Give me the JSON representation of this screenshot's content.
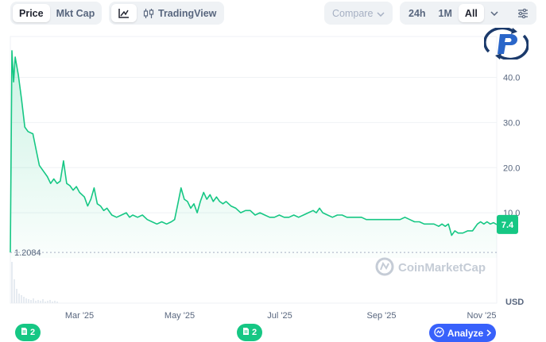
{
  "toolbar": {
    "type_tabs": [
      {
        "label": "Price",
        "active": true
      },
      {
        "label": "Mkt Cap",
        "active": false
      }
    ],
    "line_icon": "line-chart-icon",
    "tradingview_label": "TradingView",
    "compare_label": "Compare",
    "ranges": [
      {
        "label": "24h",
        "active": false
      },
      {
        "label": "1M",
        "active": false
      },
      {
        "label": "All",
        "active": true
      }
    ]
  },
  "watermark": "CoinMarketCap",
  "current_price_tag": "7.4",
  "low_line_label": "1.2084",
  "currency_label": "USD",
  "events": [
    {
      "count": "2"
    },
    {
      "count": "2"
    }
  ],
  "analyze_label": "Analyze",
  "colors": {
    "line": "#16c784",
    "accent": "#3861fb",
    "price_tag": "#16c784"
  },
  "chart_data": {
    "type": "area",
    "x_ticks": [
      "Mar '25",
      "May '25",
      "Jul '25",
      "Sep '25",
      "Nov '25"
    ],
    "y_ticks": [
      10.0,
      20.0,
      30.0,
      40.0
    ],
    "ylim": [
      0,
      48
    ],
    "series": [
      {
        "values": [
          [
            0,
            1.2
          ],
          [
            1,
            45.9
          ],
          [
            2,
            39.0
          ],
          [
            3,
            44.5
          ],
          [
            5,
            40.5
          ],
          [
            7,
            35.0
          ],
          [
            9,
            29.0
          ],
          [
            11,
            28.0
          ],
          [
            14,
            27.5
          ],
          [
            16,
            24.0
          ],
          [
            18,
            20.5
          ],
          [
            20,
            19.5
          ],
          [
            23,
            18.0
          ],
          [
            25,
            16.5
          ],
          [
            27,
            17.5
          ],
          [
            29,
            16.5
          ],
          [
            31,
            17.0
          ],
          [
            33,
            21.5
          ],
          [
            35,
            16.5
          ],
          [
            37,
            16.0
          ],
          [
            39,
            15.0
          ],
          [
            41,
            15.8
          ],
          [
            43,
            14.5
          ],
          [
            46,
            13.5
          ],
          [
            48,
            11.5
          ],
          [
            50,
            13.0
          ],
          [
            52,
            15.5
          ],
          [
            54,
            12.0
          ],
          [
            56,
            11.5
          ],
          [
            58,
            10.5
          ],
          [
            60,
            11.0
          ],
          [
            63,
            9.5
          ],
          [
            66,
            9.0
          ],
          [
            69,
            9.5
          ],
          [
            72,
            10.0
          ],
          [
            74,
            9.0
          ],
          [
            76,
            9.5
          ],
          [
            79,
            9.0
          ],
          [
            82,
            9.5
          ],
          [
            85,
            8.5
          ],
          [
            88,
            8.0
          ],
          [
            91,
            7.5
          ],
          [
            94,
            8.0
          ],
          [
            97,
            7.5
          ],
          [
            100,
            8.0
          ],
          [
            102,
            8.5
          ],
          [
            104,
            12.0
          ],
          [
            106,
            15.5
          ],
          [
            108,
            13.0
          ],
          [
            110,
            12.5
          ],
          [
            112,
            11.0
          ],
          [
            114,
            12.0
          ],
          [
            116,
            10.0
          ],
          [
            118,
            12.5
          ],
          [
            120,
            14.5
          ],
          [
            122,
            13.0
          ],
          [
            124,
            14.0
          ],
          [
            126,
            12.5
          ],
          [
            128,
            13.5
          ],
          [
            130,
            12.5
          ],
          [
            132,
            12.0
          ],
          [
            134,
            12.5
          ],
          [
            137,
            11.5
          ],
          [
            140,
            11.0
          ],
          [
            143,
            10.0
          ],
          [
            146,
            10.5
          ],
          [
            149,
            10.5
          ],
          [
            152,
            9.5
          ],
          [
            155,
            10.0
          ],
          [
            158,
            9.5
          ],
          [
            161,
            9.0
          ],
          [
            164,
            9.0
          ],
          [
            167,
            9.5
          ],
          [
            170,
            9.0
          ],
          [
            173,
            9.0
          ],
          [
            176,
            9.5
          ],
          [
            179,
            9.0
          ],
          [
            182,
            9.5
          ],
          [
            185,
            10.0
          ],
          [
            188,
            10.5
          ],
          [
            190,
            10.0
          ],
          [
            192,
            11.0
          ],
          [
            194,
            10.0
          ],
          [
            197,
            9.5
          ],
          [
            200,
            9.0
          ],
          [
            203,
            9.5
          ],
          [
            206,
            9.5
          ],
          [
            209,
            9.0
          ],
          [
            212,
            9.0
          ],
          [
            215,
            9.0
          ],
          [
            218,
            9.0
          ],
          [
            221,
            8.5
          ],
          [
            224,
            8.5
          ],
          [
            227,
            8.5
          ],
          [
            230,
            8.5
          ],
          [
            233,
            8.5
          ],
          [
            236,
            8.5
          ],
          [
            239,
            8.5
          ],
          [
            242,
            8.5
          ],
          [
            245,
            9.0
          ],
          [
            248,
            8.5
          ],
          [
            251,
            8.0
          ],
          [
            254,
            8.0
          ],
          [
            257,
            7.5
          ],
          [
            260,
            7.5
          ],
          [
            263,
            7.5
          ],
          [
            266,
            7.0
          ],
          [
            268,
            7.5
          ],
          [
            270,
            7.0
          ],
          [
            272,
            7.5
          ],
          [
            274,
            5.0
          ],
          [
            276,
            6.0
          ],
          [
            278,
            5.5
          ],
          [
            281,
            5.5
          ],
          [
            284,
            6.0
          ],
          [
            287,
            6.0
          ],
          [
            290,
            7.5
          ],
          [
            292,
            8.0
          ],
          [
            294,
            7.5
          ],
          [
            296,
            8.0
          ],
          [
            298,
            7.5
          ],
          [
            300,
            7.8
          ],
          [
            302,
            7.4
          ]
        ]
      }
    ],
    "low_line": 1.2084,
    "grid": true
  }
}
